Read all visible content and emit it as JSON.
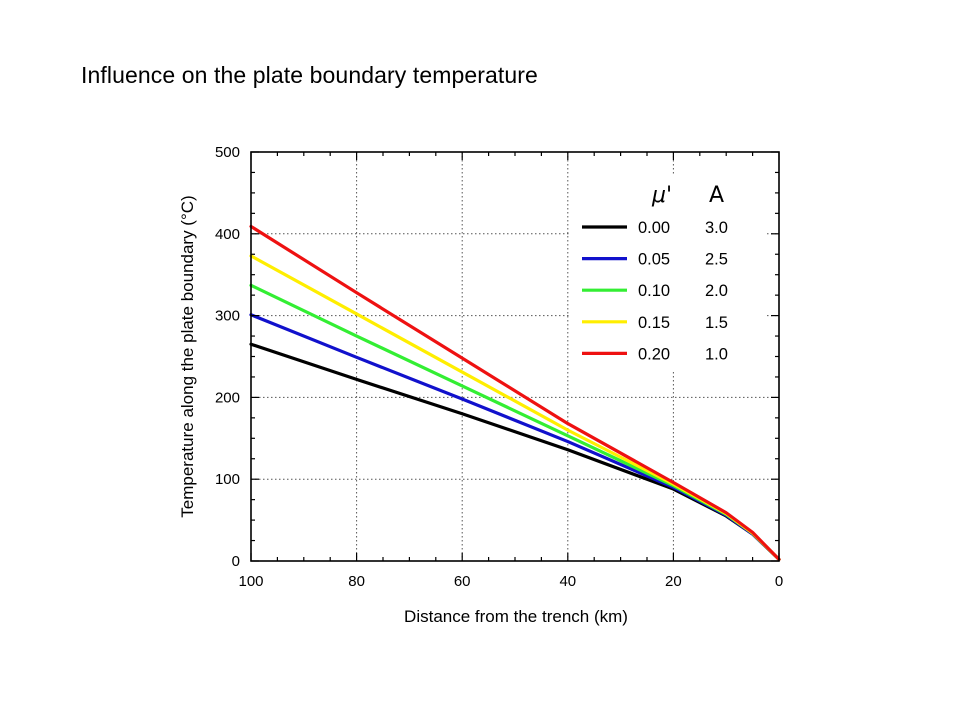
{
  "slide": {
    "title": "Influence on the plate boundary temperature"
  },
  "chart_data": {
    "type": "line",
    "xlabel": "Distance from the trench (km)",
    "ylabel": "Temperature along the plate boundary (°C)",
    "xlim": [
      100,
      0
    ],
    "ylim": [
      0,
      500
    ],
    "x_ticks": [
      100,
      80,
      60,
      40,
      20,
      0
    ],
    "y_ticks": [
      0,
      100,
      200,
      300,
      400,
      500
    ],
    "grid": true,
    "legend": {
      "placement": "top-right",
      "headers": [
        "μ'",
        "A"
      ]
    },
    "series": [
      {
        "mu": "0.00",
        "A": "3.0",
        "color": "#000000",
        "x": [
          100,
          80,
          60,
          40,
          20,
          10,
          5,
          0
        ],
        "y": [
          265,
          222,
          180,
          136,
          88,
          55,
          33,
          2
        ]
      },
      {
        "mu": "0.05",
        "A": "2.5",
        "color": "#1111cc",
        "x": [
          100,
          80,
          60,
          40,
          20,
          10,
          5,
          0
        ],
        "y": [
          301,
          249,
          198,
          146,
          90,
          56,
          33,
          2
        ]
      },
      {
        "mu": "0.10",
        "A": "2.0",
        "color": "#33ee33",
        "x": [
          100,
          80,
          60,
          40,
          20,
          10,
          5,
          0
        ],
        "y": [
          337,
          275,
          214,
          153,
          92,
          57,
          34,
          2
        ]
      },
      {
        "mu": "0.15",
        "A": "1.5",
        "color": "#ffee00",
        "x": [
          100,
          80,
          60,
          40,
          20,
          10,
          5,
          0
        ],
        "y": [
          373,
          302,
          231,
          160,
          94,
          58,
          34,
          2
        ]
      },
      {
        "mu": "0.20",
        "A": "1.0",
        "color": "#ee1111",
        "x": [
          100,
          80,
          60,
          40,
          20,
          10,
          5,
          0
        ],
        "y": [
          409,
          328,
          248,
          168,
          96,
          59,
          35,
          2
        ]
      }
    ]
  }
}
